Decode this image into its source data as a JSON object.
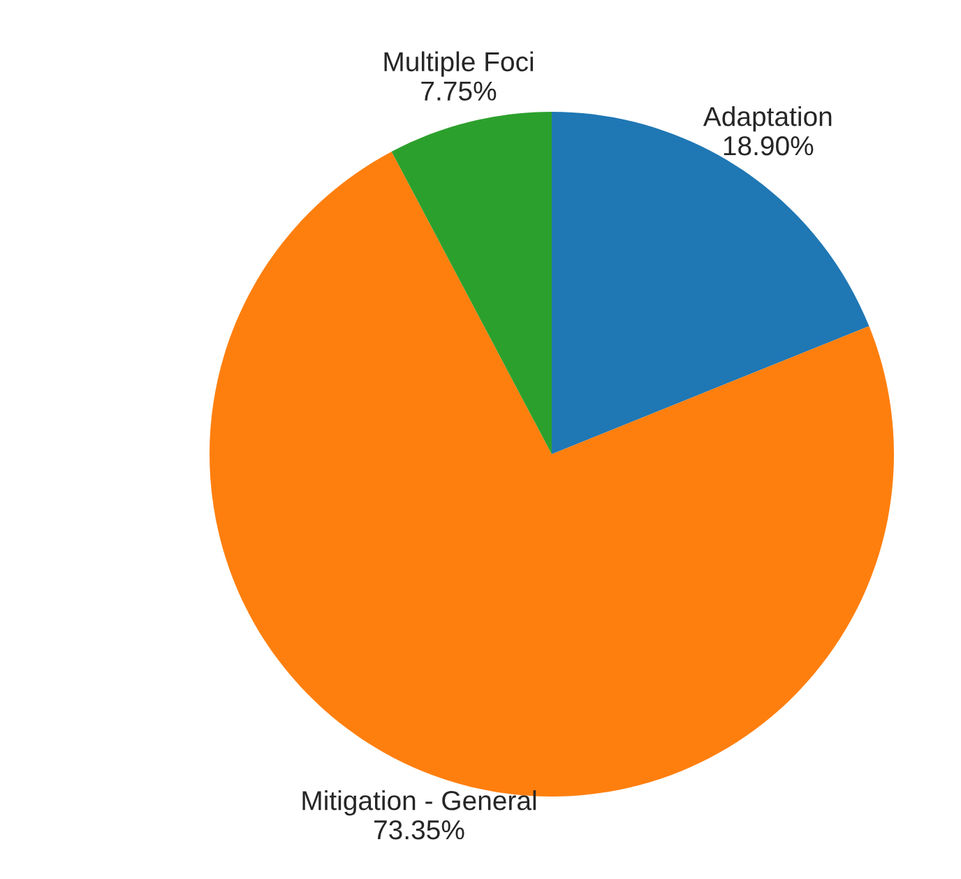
{
  "chart_data": {
    "type": "pie",
    "categories": [
      "Adaptation",
      "Mitigation - General",
      "Multiple Foci"
    ],
    "values": [
      18.9,
      73.35,
      7.75
    ],
    "value_labels": [
      "18.90%",
      "73.35%",
      "7.75%"
    ],
    "colors": [
      "#1f77b4",
      "#ff7f0e",
      "#2ca02c"
    ]
  }
}
